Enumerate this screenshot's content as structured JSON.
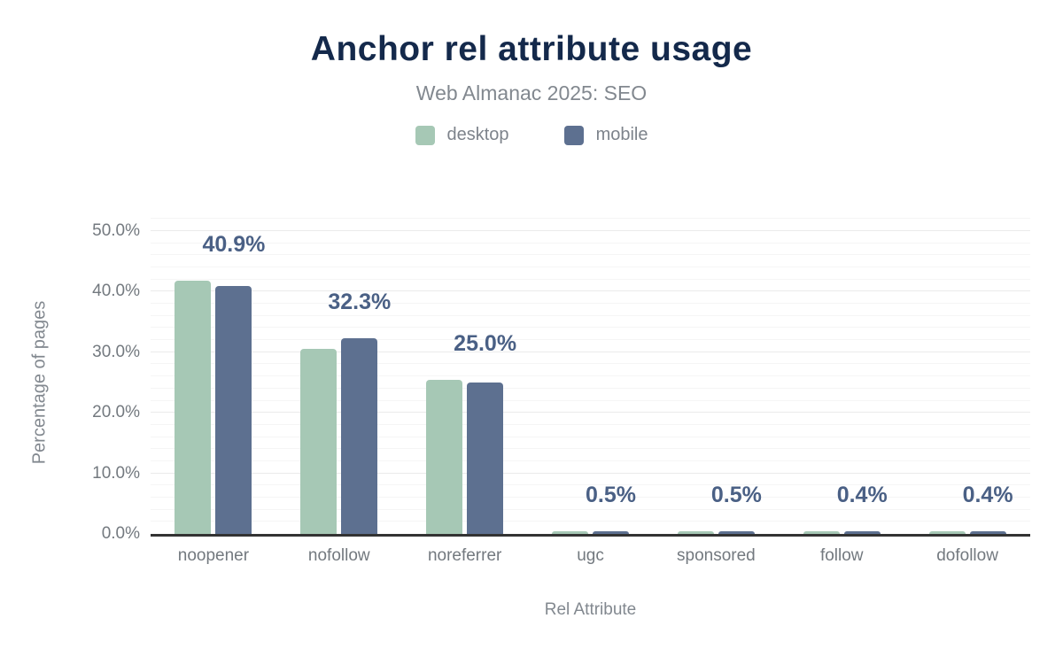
{
  "chart_data": {
    "type": "bar",
    "title": "Anchor rel attribute usage",
    "subtitle": "Web Almanac 2025: SEO",
    "xlabel": "Rel Attribute",
    "ylabel": "Percentage of pages",
    "categories": [
      "noopener",
      "nofollow",
      "noreferrer",
      "ugc",
      "sponsored",
      "follow",
      "dofollow"
    ],
    "series": [
      {
        "name": "desktop",
        "color": "#a6c8b5",
        "values": [
          41.8,
          30.6,
          25.4,
          0.5,
          0.5,
          0.4,
          0.4
        ]
      },
      {
        "name": "mobile",
        "color": "#5d7090",
        "values": [
          40.9,
          32.3,
          25.0,
          0.5,
          0.5,
          0.4,
          0.4
        ]
      }
    ],
    "data_labels": [
      "40.9%",
      "32.3%",
      "25.0%",
      "0.5%",
      "0.5%",
      "0.4%",
      "0.4%"
    ],
    "data_label_series": "mobile",
    "y_ticks": [
      {
        "value": 0,
        "label": "0.0%"
      },
      {
        "value": 10,
        "label": "10.0%"
      },
      {
        "value": 20,
        "label": "20.0%"
      },
      {
        "value": 30,
        "label": "30.0%"
      },
      {
        "value": 40,
        "label": "40.0%"
      },
      {
        "value": 50,
        "label": "50.0%"
      }
    ],
    "ylim": [
      0,
      52
    ],
    "grid": {
      "on": true,
      "minor_step": 2,
      "major_step": 10,
      "minor_color": "#f5f5f5",
      "major_color": "#ebebeb"
    },
    "legend_position": "top",
    "colors": {
      "title": "#14294b",
      "subtitle": "#82888f",
      "axis_text": "#73797f",
      "data_label": "#4a6085",
      "axis_line": "#333333",
      "background": "#ffffff"
    }
  }
}
